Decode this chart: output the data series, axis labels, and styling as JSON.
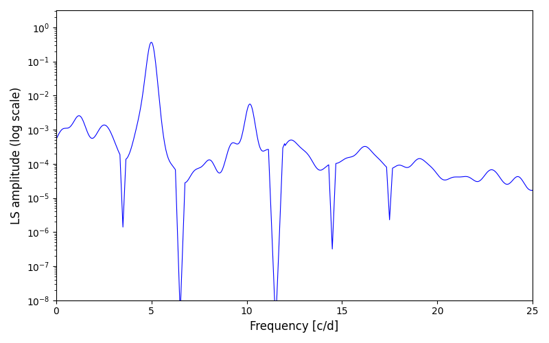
{
  "xlabel": "Frequency [c/d]",
  "ylabel": "LS amplitude (log scale)",
  "line_color": "blue",
  "xlim": [
    0,
    25
  ],
  "ylim_log": [
    -8.0,
    0.5
  ],
  "figsize": [
    8.0,
    5.0
  ],
  "dpi": 100,
  "background_color": "#ffffff",
  "seed": 12345,
  "n_points": 800,
  "freq_max": 25.0
}
